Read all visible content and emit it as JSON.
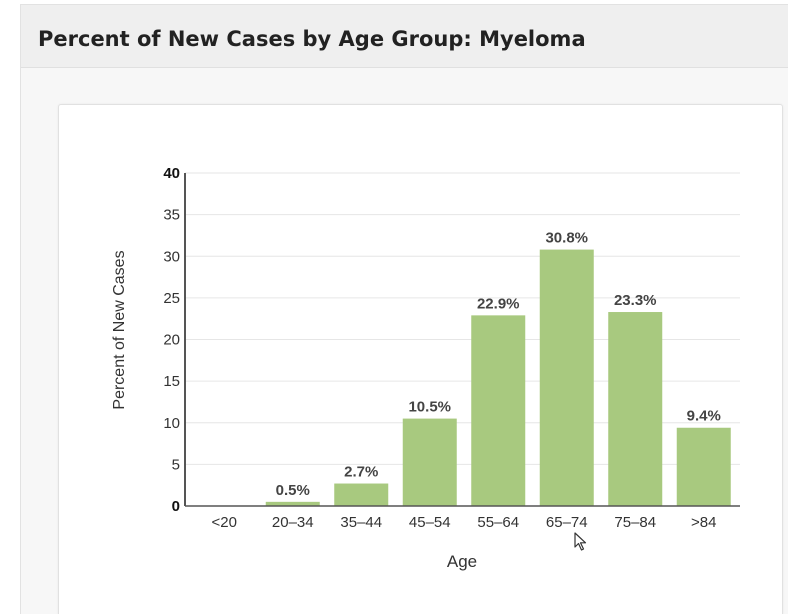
{
  "panel": {
    "title": "Percent of New Cases by Age Group: Myeloma"
  },
  "colors": {
    "bar": "#a8c97f",
    "grid": "#e6e6e6",
    "axis": "#555555",
    "text": "#333333"
  },
  "chart_data": {
    "type": "bar",
    "title": "",
    "xlabel": "Age",
    "ylabel": "Percent of New Cases",
    "categories": [
      "<20",
      "20–34",
      "35–44",
      "45–54",
      "55–64",
      "65–74",
      "75–84",
      ">84"
    ],
    "values": [
      0,
      0.5,
      2.7,
      10.5,
      22.9,
      30.8,
      23.3,
      9.4
    ],
    "data_labels": [
      "",
      "0.5%",
      "2.7%",
      "10.5%",
      "22.9%",
      "30.8%",
      "23.3%",
      "9.4%"
    ],
    "ylim": [
      0,
      40
    ],
    "yticks": [
      "0",
      "5",
      "10",
      "15",
      "20",
      "25",
      "30",
      "35",
      "40"
    ],
    "grid": true,
    "legend": "none"
  },
  "cursor": {
    "icon": "mouse-pointer-icon"
  }
}
